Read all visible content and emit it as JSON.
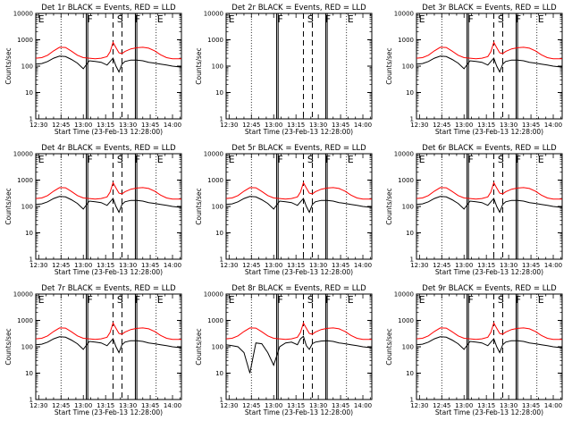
{
  "figure": {
    "xtick_labels": [
      "12:30",
      "12:45",
      "13:00",
      "13:15",
      "13:30",
      "13:45",
      "14:00"
    ],
    "ytick_labels": [
      "1",
      "10",
      "100",
      "1000",
      "10000"
    ],
    "ylabel": "Counts/sec"
  },
  "chart_data": [
    {
      "type": "line",
      "title": "Det 1r BLACK = Events, RED = LLD",
      "xlabel": "Start Time (23-Feb-13 12:28:00)",
      "ylabel": "Counts/sec",
      "xlim": [
        "12:28",
        "14:06"
      ],
      "ylim": [
        1,
        10000
      ],
      "y_log": true,
      "has_data": true,
      "variant": "normal",
      "flags": [
        "E",
        "F",
        "S",
        "F",
        "E"
      ]
    },
    {
      "type": "line",
      "title": "Det 2r BLACK = Events, RED = LLD",
      "xlabel": "Start Time (23-Feb-13 12:28:00)",
      "ylabel": "Counts/sec",
      "xlim": [
        "12:28",
        "14:06"
      ],
      "ylim": [
        1,
        10000
      ],
      "y_log": true,
      "has_data": false,
      "variant": "none",
      "flags": [
        "E",
        "F",
        "S",
        "F",
        "E"
      ]
    },
    {
      "type": "line",
      "title": "Det 3r BLACK = Events, RED = LLD",
      "xlabel": "Start Time (23-Feb-13 12:28:00)",
      "ylabel": "Counts/sec",
      "xlim": [
        "12:28",
        "14:06"
      ],
      "ylim": [
        1,
        10000
      ],
      "y_log": true,
      "has_data": true,
      "variant": "normal",
      "flags": [
        "E",
        "F",
        "S",
        "F",
        "E"
      ]
    },
    {
      "type": "line",
      "title": "Det 4r BLACK = Events, RED = LLD",
      "xlabel": "Start Time (23-Feb-13 12:28:00)",
      "ylabel": "Counts/sec",
      "xlim": [
        "12:28",
        "14:06"
      ],
      "ylim": [
        1,
        10000
      ],
      "y_log": true,
      "has_data": true,
      "variant": "normal",
      "flags": [
        "E",
        "F",
        "S",
        "F",
        "E"
      ]
    },
    {
      "type": "line",
      "title": "Det 5r BLACK = Events, RED = LLD",
      "xlabel": "Start Time (23-Feb-13 12:28:00)",
      "ylabel": "Counts/sec",
      "xlim": [
        "12:28",
        "14:06"
      ],
      "ylim": [
        1,
        10000
      ],
      "y_log": true,
      "has_data": true,
      "variant": "normal",
      "flags": [
        "E",
        "F",
        "S",
        "F",
        "E"
      ]
    },
    {
      "type": "line",
      "title": "Det 6r BLACK = Events, RED = LLD",
      "xlabel": "Start Time (23-Feb-13 12:28:00)",
      "ylabel": "Counts/sec",
      "xlim": [
        "12:28",
        "14:06"
      ],
      "ylim": [
        1,
        10000
      ],
      "y_log": true,
      "has_data": true,
      "variant": "normal",
      "flags": [
        "E",
        "F",
        "S",
        "F",
        "E"
      ]
    },
    {
      "type": "line",
      "title": "Det 7r BLACK = Events, RED = LLD",
      "xlabel": "Start Time (23-Feb-13 12:28:00)",
      "ylabel": "Counts/sec",
      "xlim": [
        "12:28",
        "14:06"
      ],
      "ylim": [
        1,
        10000
      ],
      "y_log": true,
      "has_data": true,
      "variant": "normal",
      "flags": [
        "E",
        "F",
        "S",
        "F",
        "E"
      ]
    },
    {
      "type": "line",
      "title": "Det 8r BLACK = Events, RED = LLD",
      "xlabel": "Start Time (23-Feb-13 12:28:00)",
      "ylabel": "Counts/sec",
      "xlim": [
        "12:28",
        "14:06"
      ],
      "ylim": [
        1,
        10000
      ],
      "y_log": true,
      "has_data": true,
      "variant": "spiky",
      "flags": [
        "E",
        "F",
        "S",
        "F",
        "E"
      ]
    },
    {
      "type": "line",
      "title": "Det 9r BLACK = Events, RED = LLD",
      "xlabel": "Start Time (23-Feb-13 12:28:00)",
      "ylabel": "Counts/sec",
      "xlim": [
        "12:28",
        "14:06"
      ],
      "ylim": [
        1,
        10000
      ],
      "y_log": true,
      "has_data": true,
      "variant": "normal",
      "flags": [
        "E",
        "F",
        "S",
        "F",
        "E"
      ]
    }
  ],
  "series_model": {
    "times": [
      "12:28",
      "12:32",
      "12:36",
      "12:40",
      "12:44",
      "12:48",
      "12:52",
      "12:56",
      "13:00",
      "13:04",
      "13:08",
      "13:12",
      "13:16",
      "13:18",
      "13:20",
      "13:22",
      "13:24",
      "13:26",
      "13:28",
      "13:32",
      "13:36",
      "13:40",
      "13:44",
      "13:48",
      "13:52",
      "13:56",
      "14:00",
      "14:04",
      "14:06"
    ],
    "red_lld": [
      200,
      210,
      260,
      380,
      520,
      510,
      370,
      260,
      210,
      200,
      190,
      200,
      230,
      350,
      800,
      500,
      320,
      300,
      360,
      450,
      500,
      520,
      480,
      380,
      270,
      210,
      190,
      190,
      190
    ],
    "black_events": [
      120,
      125,
      150,
      200,
      240,
      230,
      180,
      130,
      80,
      160,
      150,
      140,
      110,
      150,
      200,
      100,
      60,
      120,
      150,
      170,
      170,
      160,
      140,
      130,
      120,
      110,
      100,
      95,
      95
    ],
    "spiky_black_events": [
      120,
      110,
      100,
      60,
      10,
      140,
      130,
      60,
      20,
      100,
      140,
      150,
      120,
      200,
      250,
      110,
      80,
      130,
      150,
      165,
      170,
      160,
      140,
      130,
      120,
      110,
      100,
      95,
      95
    ],
    "event_lines": [
      {
        "time": "12:45",
        "style": "dotted"
      },
      {
        "time": "13:02",
        "style": "solid"
      },
      {
        "time": "13:03",
        "style": "solid"
      },
      {
        "time": "13:20",
        "style": "dashed"
      },
      {
        "time": "13:26",
        "style": "dashed"
      },
      {
        "time": "13:35",
        "style": "solid"
      },
      {
        "time": "13:36",
        "style": "solid"
      },
      {
        "time": "13:49",
        "style": "dotted"
      }
    ],
    "flag_times": [
      "12:29",
      "13:02",
      "13:22",
      "13:34",
      "13:49"
    ]
  },
  "colors": {
    "events": "#000000",
    "lld": "#ff0000",
    "frame": "#000000"
  }
}
